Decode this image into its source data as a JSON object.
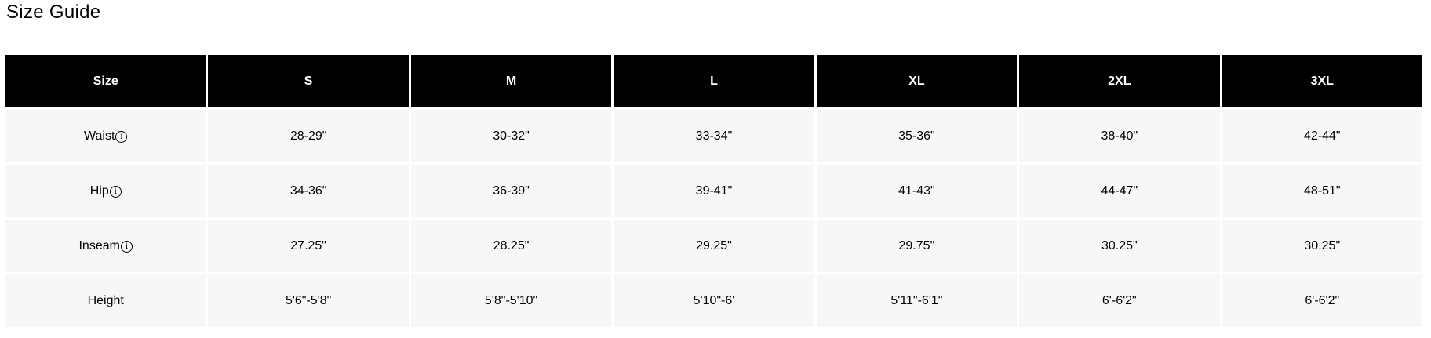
{
  "title": "Size Guide",
  "table": {
    "headers": [
      "Size",
      "S",
      "M",
      "L",
      "XL",
      "2XL",
      "3XL"
    ],
    "rows": [
      {
        "label": "Waist",
        "info_icon": "info-circle-icon",
        "values": [
          "28-29\"",
          "30-32\"",
          "33-34\"",
          "35-36\"",
          "38-40\"",
          "42-44\""
        ]
      },
      {
        "label": "Hip",
        "info_icon": "info-circle-icon",
        "values": [
          "34-36\"",
          "36-39\"",
          "39-41\"",
          "41-43\"",
          "44-47\"",
          "48-51\""
        ]
      },
      {
        "label": "Inseam",
        "info_icon": "info-circle-icon",
        "values": [
          "27.25\"",
          "28.25\"",
          "29.25\"",
          "29.75\"",
          "30.25\"",
          "30.25\""
        ]
      },
      {
        "label": "Height",
        "values": [
          "5'6\"-5'8\"",
          "5'8\"-5'10\"",
          "5'10\"-6'",
          "5'11\"-6'1\"",
          "6'-6'2\"",
          "6'-6'2\""
        ]
      }
    ]
  }
}
